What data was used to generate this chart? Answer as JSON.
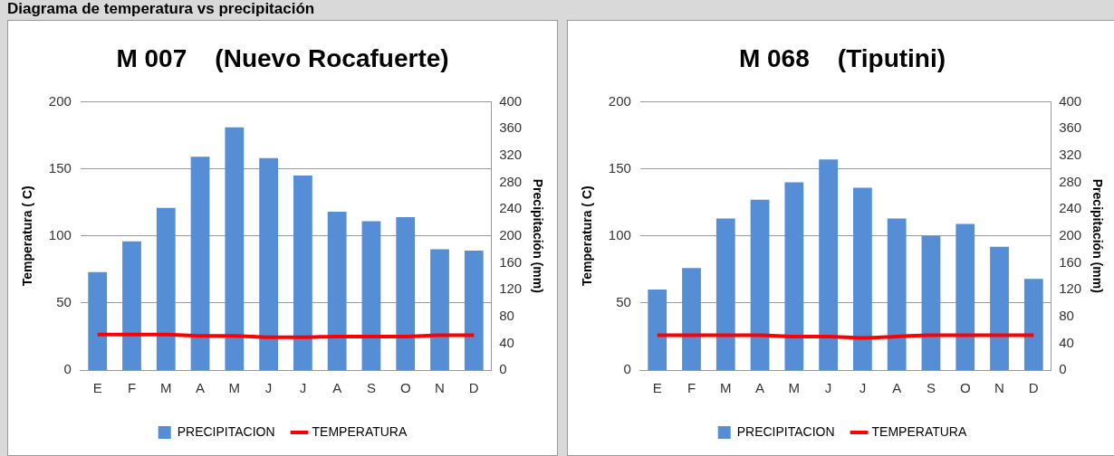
{
  "chart_data": [
    {
      "type": "bar",
      "title": "M 007    (Nuevo Rocafuerte)",
      "annotations": [
        "Diagrama de temperatura vs precipitación"
      ],
      "ylabel": "Temperatura ( C)",
      "y2label": "Precipitación (mm)",
      "categories": [
        "E",
        "F",
        "M",
        "A",
        "M",
        "J",
        "J",
        "A",
        "S",
        "O",
        "N",
        "D"
      ],
      "ylim": [
        0,
        200
      ],
      "yticks": [
        0,
        50,
        100,
        150,
        200
      ],
      "y2lim": [
        0,
        400
      ],
      "y2ticks": [
        0,
        40,
        80,
        120,
        160,
        200,
        240,
        280,
        320,
        360,
        400
      ],
      "grid": "y",
      "legend": "bottom",
      "marker": "none",
      "series": [
        {
          "name": "PRECIPITACION",
          "color": "#558ed5",
          "axis": "y2",
          "values": [
            146,
            192,
            242,
            318,
            362,
            316,
            290,
            236,
            222,
            228,
            180,
            178
          ]
        },
        {
          "name": "TEMPERATURA",
          "type": "line",
          "color": "#ff0000",
          "values": [
            26.5,
            26.5,
            26.5,
            25.5,
            25.5,
            24.5,
            24.5,
            25,
            25,
            25,
            26,
            26
          ]
        }
      ]
    },
    {
      "type": "bar",
      "title": "M 068    (Tiputini)",
      "ylabel": "Temperatura ( C)",
      "y2label": "Precipitación (mm)",
      "categories": [
        "E",
        "F",
        "M",
        "A",
        "M",
        "J",
        "J",
        "A",
        "S",
        "O",
        "N",
        "D"
      ],
      "ylim": [
        0,
        200
      ],
      "yticks": [
        0,
        50,
        100,
        150,
        200
      ],
      "y2lim": [
        0,
        400
      ],
      "y2ticks": [
        0,
        40,
        80,
        120,
        160,
        200,
        240,
        280,
        320,
        360,
        400
      ],
      "grid": "y",
      "legend": "bottom",
      "marker": "none",
      "series": [
        {
          "name": "PRECIPITACION",
          "color": "#558ed5",
          "axis": "y2",
          "values": [
            120,
            152,
            226,
            254,
            280,
            314,
            272,
            226,
            200,
            218,
            184,
            136
          ]
        },
        {
          "name": "TEMPERATURA",
          "type": "line",
          "color": "#ff0000",
          "values": [
            26,
            26,
            26,
            26,
            25,
            25,
            24,
            25,
            26,
            26,
            26,
            26
          ]
        }
      ]
    }
  ]
}
